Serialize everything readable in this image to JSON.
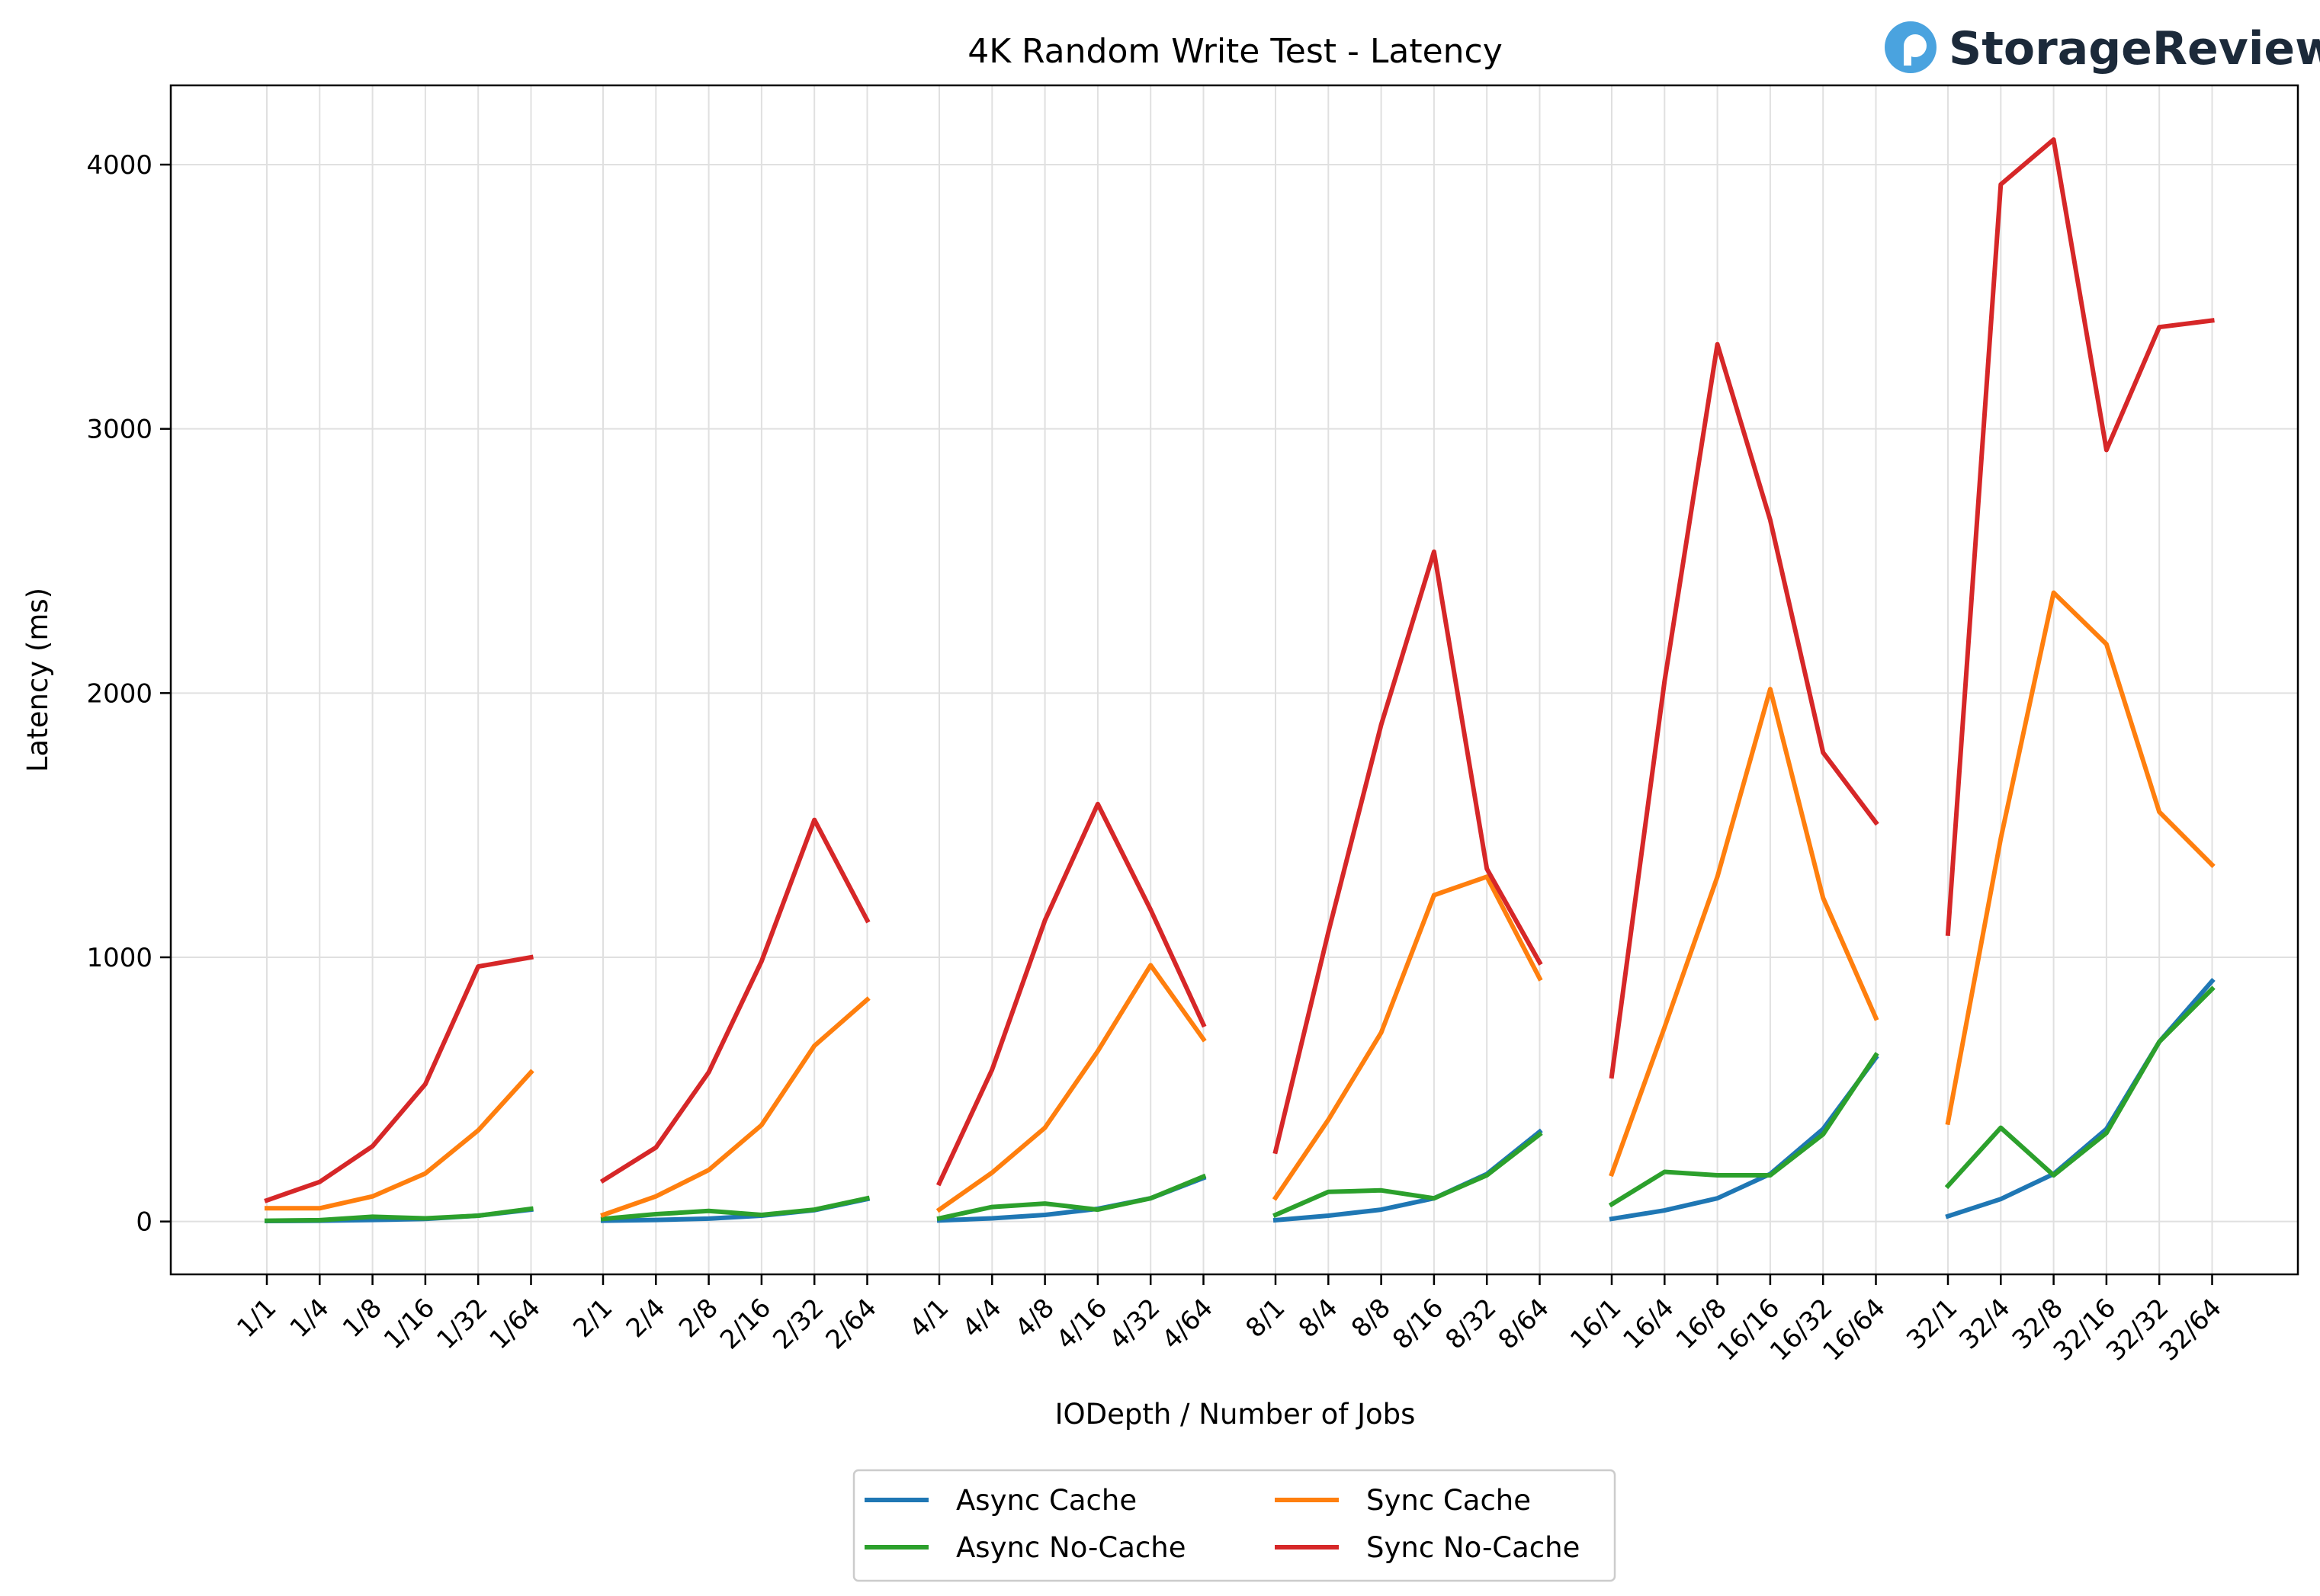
{
  "brand": {
    "name": "StorageReview"
  },
  "chart_data": {
    "type": "line",
    "title": "4K Random Write Test - Latency",
    "xlabel": "IODepth / Number of Jobs",
    "ylabel": "Latency (ms)",
    "ylim": [
      -200,
      4300
    ],
    "yticks": [
      0,
      1000,
      2000,
      3000,
      4000
    ],
    "grid": true,
    "legend_position": "bottom-center",
    "groups": [
      {
        "label": "1",
        "categories": [
          "1/1",
          "1/4",
          "1/8",
          "1/16",
          "1/32",
          "1/64"
        ]
      },
      {
        "label": "2",
        "categories": [
          "2/1",
          "2/4",
          "2/8",
          "2/16",
          "2/32",
          "2/64"
        ]
      },
      {
        "label": "4",
        "categories": [
          "4/1",
          "4/4",
          "4/8",
          "4/16",
          "4/32",
          "4/64"
        ]
      },
      {
        "label": "8",
        "categories": [
          "8/1",
          "8/4",
          "8/8",
          "8/16",
          "8/32",
          "8/64"
        ]
      },
      {
        "label": "16",
        "categories": [
          "16/1",
          "16/4",
          "16/8",
          "16/16",
          "16/32",
          "16/64"
        ]
      },
      {
        "label": "32",
        "categories": [
          "32/1",
          "32/4",
          "32/8",
          "32/16",
          "32/32",
          "32/64"
        ]
      }
    ],
    "series": [
      {
        "name": "Async Cache",
        "color": "#1f77b4",
        "values": [
          [
            2,
            3,
            6,
            10,
            22,
            45
          ],
          [
            3,
            6,
            11,
            22,
            43,
            85
          ],
          [
            4,
            12,
            25,
            48,
            88,
            165
          ],
          [
            5,
            22,
            45,
            88,
            180,
            340
          ],
          [
            10,
            42,
            88,
            180,
            350,
            620
          ],
          [
            20,
            85,
            180,
            350,
            680,
            910
          ]
        ]
      },
      {
        "name": "Async No-Cache",
        "color": "#2ca02c",
        "values": [
          [
            3,
            5,
            18,
            12,
            22,
            48
          ],
          [
            10,
            28,
            40,
            25,
            45,
            88
          ],
          [
            12,
            55,
            68,
            45,
            88,
            170
          ],
          [
            25,
            112,
            118,
            88,
            175,
            330
          ],
          [
            65,
            188,
            175,
            175,
            330,
            630
          ],
          [
            135,
            355,
            175,
            335,
            680,
            880
          ]
        ]
      },
      {
        "name": "Sync Cache",
        "color": "#ff7f0e",
        "values": [
          [
            50,
            50,
            95,
            182,
            345,
            565
          ],
          [
            25,
            95,
            195,
            365,
            665,
            840
          ],
          [
            45,
            185,
            355,
            645,
            970,
            690
          ],
          [
            90,
            385,
            715,
            1235,
            1305,
            920
          ],
          [
            180,
            735,
            1305,
            2015,
            1225,
            770
          ],
          [
            375,
            1450,
            2380,
            2185,
            1550,
            1350
          ]
        ]
      },
      {
        "name": "Sync No-Cache",
        "color": "#d62728",
        "values": [
          [
            80,
            150,
            285,
            520,
            965,
            1000
          ],
          [
            155,
            280,
            565,
            985,
            1520,
            1140
          ],
          [
            145,
            575,
            1140,
            1580,
            1180,
            745
          ],
          [
            265,
            1095,
            1880,
            2535,
            1335,
            980
          ],
          [
            550,
            2045,
            3320,
            2655,
            1775,
            1510
          ],
          [
            1090,
            3925,
            4095,
            2920,
            3385,
            3410
          ]
        ]
      }
    ]
  }
}
